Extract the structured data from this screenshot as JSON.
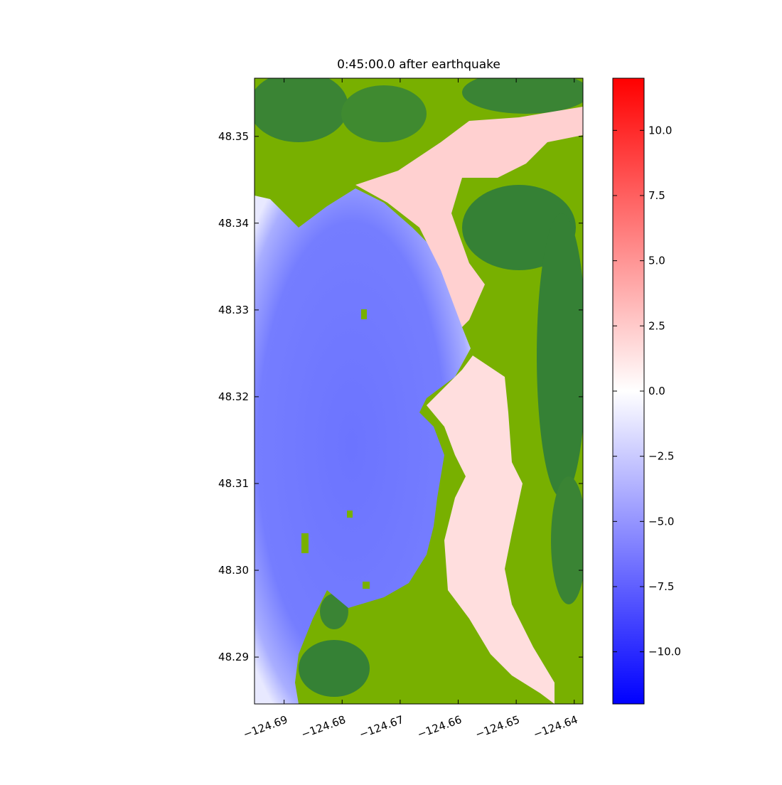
{
  "chart_data": {
    "type": "map",
    "title": "0:45:00.0 after earthquake",
    "xlim": [
      -124.6951,
      -124.6385
    ],
    "ylim": [
      48.2846,
      48.3567
    ],
    "xticks": [
      {
        "value": -124.69,
        "label": "−124.69"
      },
      {
        "value": -124.68,
        "label": "−124.68"
      },
      {
        "value": -124.67,
        "label": "−124.67"
      },
      {
        "value": -124.66,
        "label": "−124.66"
      },
      {
        "value": -124.65,
        "label": "−124.65"
      },
      {
        "value": -124.64,
        "label": "−124.64"
      }
    ],
    "yticks": [
      48.29,
      {
        "value": 48.3,
        "label": "48.30"
      },
      48.31,
      48.32,
      48.33,
      48.34,
      48.35
    ],
    "colorbar": {
      "clim": [
        -12,
        12
      ],
      "colors": [
        "#0000ff",
        "#ffffff",
        "#ff0000"
      ],
      "ticks": [
        {
          "value": -10,
          "label": "−10.0"
        },
        {
          "value": -7.5,
          "label": "−7.5"
        },
        {
          "value": -5,
          "label": "−5.0"
        },
        {
          "value": -2.5,
          "label": "−2.5"
        },
        {
          "value": 0,
          "label": "0.0"
        },
        {
          "value": 2.5,
          "label": "2.5"
        },
        {
          "value": 5,
          "label": "5.0"
        },
        {
          "value": 7.5,
          "label": "7.5"
        },
        {
          "value": 10,
          "label": "10.0"
        }
      ]
    }
  }
}
